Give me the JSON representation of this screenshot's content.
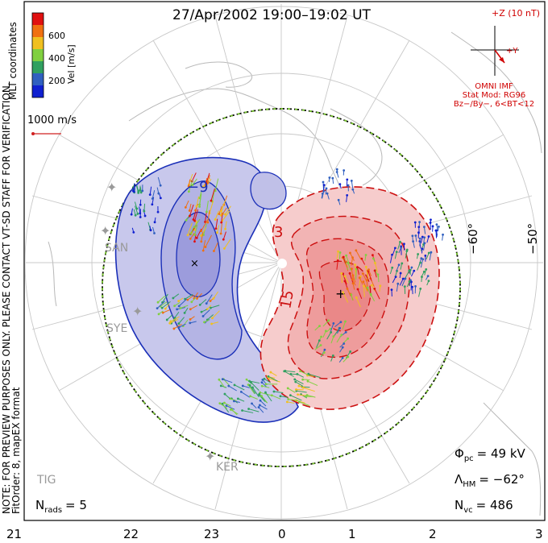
{
  "title": "27/Apr/2002 19:00–19:02 UT",
  "colorbar": {
    "label": "Vel [m/s]",
    "ticks": [
      "600",
      "400",
      "200"
    ],
    "colors": [
      "#e01010",
      "#f07010",
      "#f0c020",
      "#80d040",
      "#30a060",
      "#3060c0",
      "#1020d0"
    ]
  },
  "coords_label": "MLT coordinates",
  "scale_vector": {
    "label": "1000 m/s",
    "color": "#d02020"
  },
  "imf": {
    "bz_label": "+Z (10 nT)",
    "by_label": "+Y",
    "source": "OMNI IMF",
    "model": "Stat Mod: RG96",
    "bin": "Bz−/By−, 6<BT<12"
  },
  "preview_note": "NOTE: FOR PREVIEW PURPOSES ONLY. PLEASE CONTACT VT-SD STAFF FOR VERIFICATION.",
  "fit_order": "FitOrder: 8, mapEX format",
  "lat_labels": [
    "−60°",
    "−50°"
  ],
  "contour_labels": [
    "−9",
    "3",
    "15"
  ],
  "stations": [
    "SAN",
    "SYE",
    "KER",
    "TIG"
  ],
  "stats": {
    "phi_pc_sym": "Φ",
    "phi_pc_sub": "pc",
    "phi_pc_val": "= 49 kV",
    "lambda_hm_sym": "Λ",
    "lambda_hm_sub": "HM",
    "lambda_hm_val": "= −62°",
    "n_vc_sym": "N",
    "n_vc_sub": "vc",
    "n_vc_val": "= 486",
    "n_rads_sym": "N",
    "n_rads_sub": "rads",
    "n_rads_val": "= 5"
  },
  "mlt_ticks": [
    "21",
    "22",
    "23",
    "0",
    "1",
    "2",
    "3"
  ],
  "colors": {
    "negative_cell_fill": "#c8c8ec",
    "negative_cell_line": "#1a2fb8",
    "positive_cell_fill": "#f4b8b8",
    "positive_cell_line": "#cc1010",
    "hm_boundary": "#000000"
  }
}
